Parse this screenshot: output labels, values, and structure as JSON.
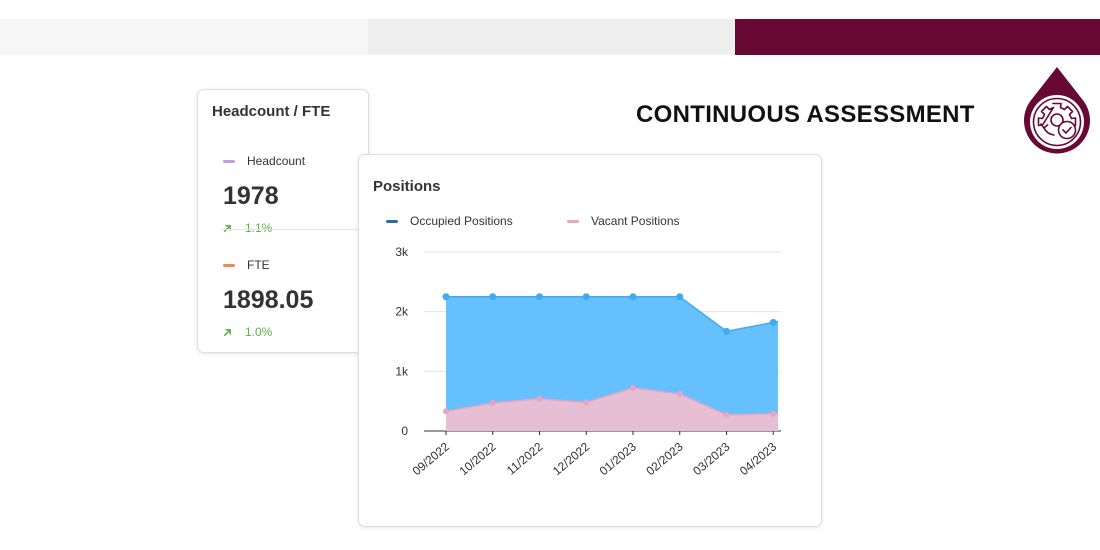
{
  "header": {
    "title": "CONTINUOUS ASSESSMENT",
    "icon": "gear-check-icon",
    "accent_color": "#680834"
  },
  "headcount_card": {
    "title": "Headcount / FTE",
    "headcount": {
      "label": "Headcount",
      "value": "1978",
      "change": "1.1%",
      "color": "#c39be8",
      "trend_icon": "trend-up-arrow-icon"
    },
    "fte": {
      "label": "FTE",
      "value": "1898.05",
      "change": "1.0%",
      "color": "#ef8b52",
      "trend_icon": "trend-up-arrow-icon"
    }
  },
  "positions_card": {
    "title": "Positions",
    "chart_data": {
      "type": "area",
      "title": "Positions",
      "categories": [
        "09/2022",
        "10/2022",
        "11/2022",
        "12/2022",
        "01/2023",
        "02/2023",
        "03/2023",
        "04/2023"
      ],
      "series": [
        {
          "name": "Occupied Positions",
          "values": [
            2250,
            2250,
            2250,
            2250,
            2250,
            2250,
            1670,
            1820
          ],
          "color": "#42aaf5",
          "fill": "#66c0fb"
        },
        {
          "name": "Vacant Positions",
          "values": [
            330,
            470,
            540,
            480,
            720,
            620,
            270,
            290
          ],
          "color": "#e8a3c7",
          "fill": "#e6bfd4"
        }
      ],
      "stacked": false,
      "y_ticks": [
        "0",
        "1k",
        "2k",
        "3k"
      ],
      "ylim": [
        0,
        3000
      ],
      "grid": true,
      "legend": "top-left",
      "xlabel": "",
      "ylabel": ""
    }
  }
}
